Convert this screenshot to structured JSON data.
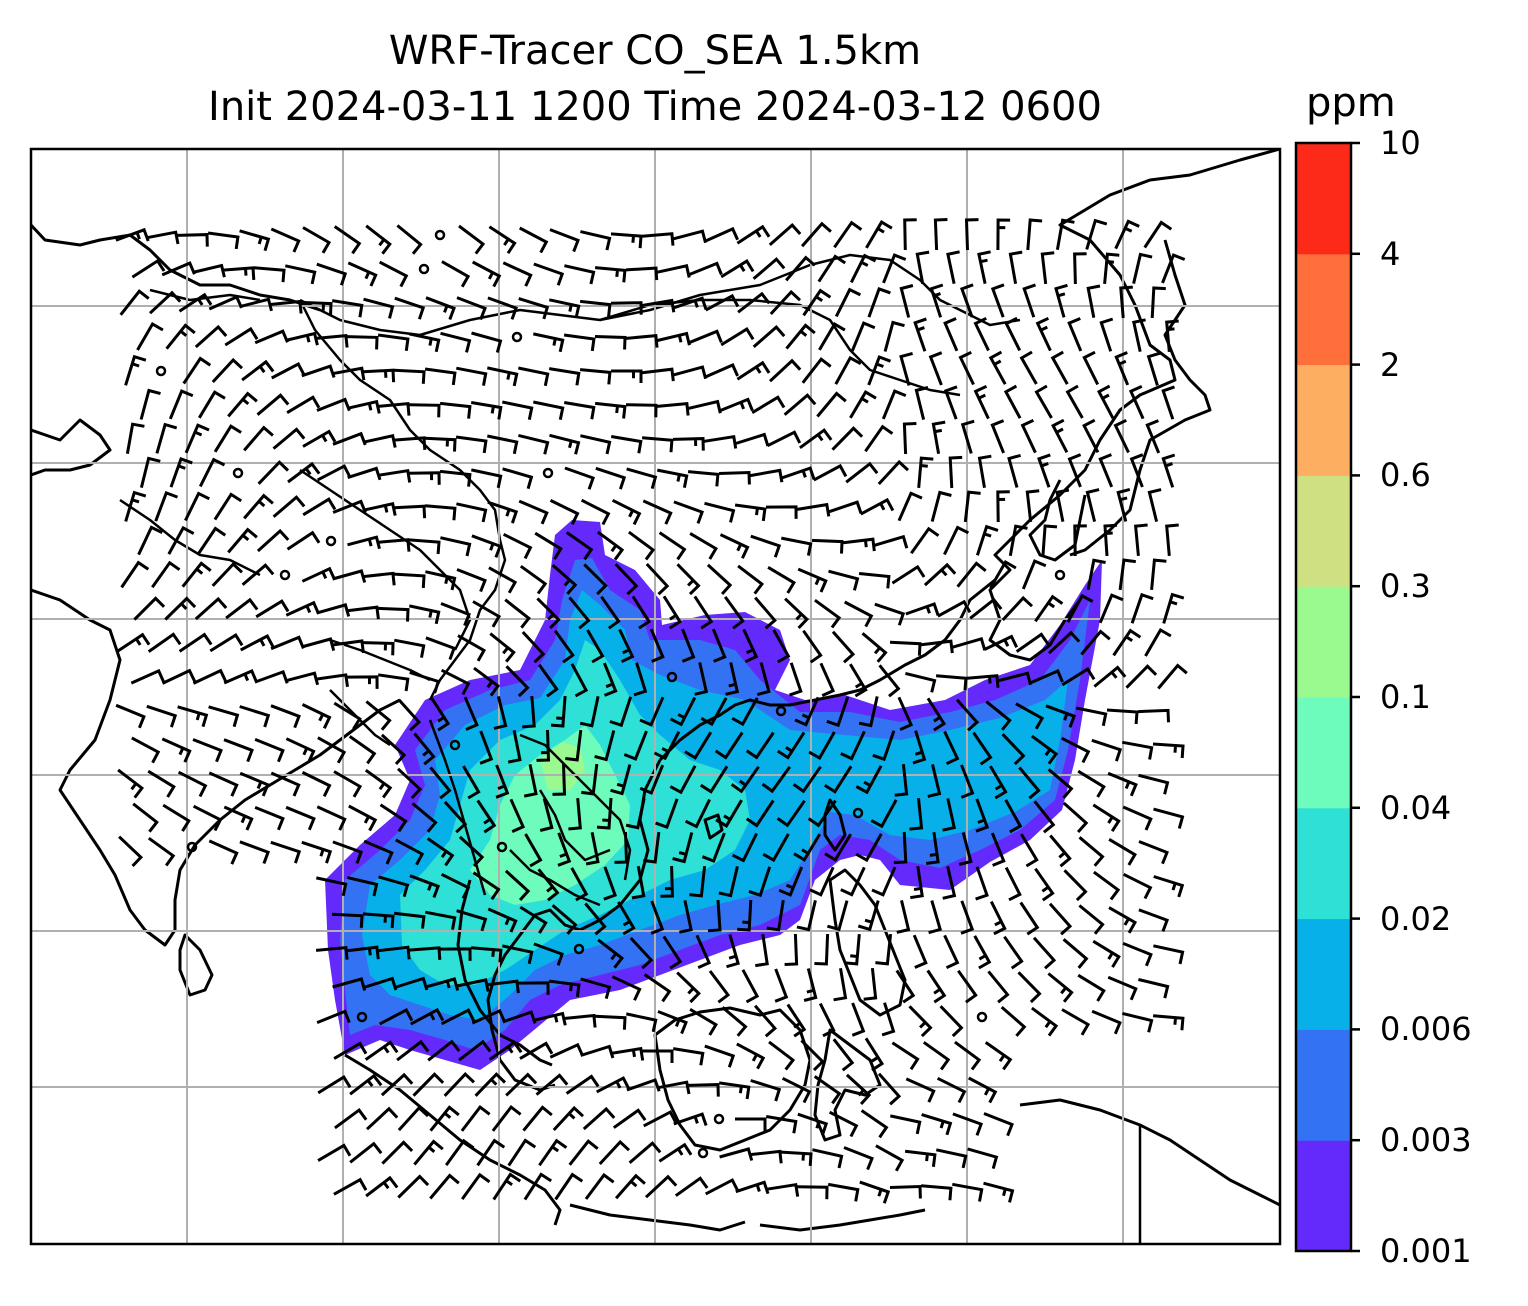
{
  "title": {
    "line1": "WRF-Tracer CO_SEA 1.5km",
    "line2": "Init 2024-03-11 1200 Time 2024-03-12 0600"
  },
  "colorbar": {
    "unit": "ppm",
    "levels": [
      "0.001",
      "0.003",
      "0.006",
      "0.02",
      "0.04",
      "0.1",
      "0.3",
      "0.6",
      "2",
      "4",
      "10"
    ],
    "colors": [
      "#6429fb",
      "#3472f4",
      "#08b0ea",
      "#2ee0d6",
      "#6efcbc",
      "#9bfa8f",
      "#cfe083",
      "#fdae61",
      "#fe6f3c",
      "#fd2a19"
    ]
  },
  "map": {
    "projection": "lat-lon",
    "gridlines": true,
    "features": [
      "coastlines",
      "country-borders",
      "wind-barbs",
      "co-tracer-filled-contours"
    ]
  }
}
